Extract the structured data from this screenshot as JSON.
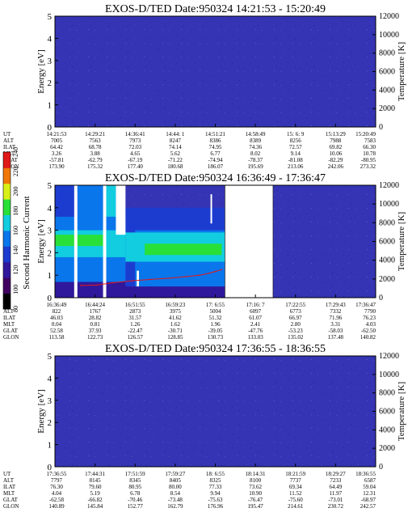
{
  "chart_data": [
    {
      "type": "heatmap",
      "title": "EXOS-D/TED   Date:950324   14:21:53 - 15:20:49",
      "ylabel": "Energy [eV]",
      "ylim": [
        0,
        5
      ],
      "yticks": [
        "0",
        "1",
        "2",
        "3",
        "4",
        "5"
      ],
      "y2label": "Temperature [K]",
      "y2lim": [
        0,
        12000
      ],
      "y2ticks": [
        "0",
        "2000",
        "4000",
        "6000",
        "8000",
        "10000",
        "12000"
      ],
      "ephemeris": {
        "labels": [
          "UT",
          "ALT",
          "ILAT",
          "MLT",
          "GLAT",
          "GLON"
        ],
        "columns": [
          [
            "14:21:53",
            "7005",
            "64.42",
            "3.26",
            "-57.81",
            "173.90"
          ],
          [
            "14:29:21",
            "7563",
            "68.78",
            "3.88",
            "-62.79",
            "175.32"
          ],
          [
            "14:36:41",
            "7973",
            "72.03",
            "4.65",
            "-67.19",
            "177.40"
          ],
          [
            "14:44: 1",
            "8247",
            "74.14",
            "5.62",
            "-71.22",
            "180.68"
          ],
          [
            "14:51:21",
            "8386",
            "74.95",
            "6.77",
            "-74.94",
            "186.07"
          ],
          [
            "14:58:49",
            "8389",
            "74.36",
            "8.02",
            "-78.37",
            "195.69"
          ],
          [
            "15: 6: 9",
            "8256",
            "72.57",
            "9.14",
            "-81.08",
            "213.06"
          ],
          [
            "15:13:29",
            "7988",
            "69.82",
            "10.06",
            "-82.29",
            "242.06"
          ],
          [
            "15:20:49",
            "7583",
            "66.30",
            "10.78",
            "-80.95",
            "273.32"
          ]
        ]
      },
      "background_color": "#3434b4"
    },
    {
      "type": "heatmap",
      "title": "EXOS-D/TED   Date:950324   16:36:49 - 17:36:47",
      "ylabel": "Energy [eV]",
      "ylim": [
        0,
        5
      ],
      "yticks": [
        "0",
        "1",
        "2",
        "3",
        "4",
        "5"
      ],
      "y2label": "Temperature [K]",
      "y2lim": [
        0,
        12000
      ],
      "y2ticks": [
        "0",
        "2000",
        "4000",
        "6000",
        "8000",
        "10000",
        "12000"
      ],
      "colorbar": {
        "label": "Second Harmonic Current",
        "ticks": [
          "80",
          "100",
          "120",
          "140",
          "160",
          "180",
          "200",
          "220",
          "240"
        ],
        "colors": [
          "#000000",
          "#400060",
          "#30189c",
          "#1c3cd0",
          "#0a76ec",
          "#12cce0",
          "#28e038",
          "#d8f018",
          "#f07808",
          "#e01818"
        ]
      },
      "ephemeris": {
        "labels": [
          "UT",
          "ALT",
          "ILAT",
          "MLT",
          "GLAT",
          "GLON"
        ],
        "columns": [
          [
            "16:36:49",
            "822",
            "46.03",
            "0.04",
            "52.58",
            "113.58"
          ],
          [
            "16:44:24",
            "1767",
            "28.82",
            "0.81",
            "37.93",
            "122.73"
          ],
          [
            "16:51:55",
            "2873",
            "31.57",
            "1.26",
            "-22.47",
            "126.57"
          ],
          [
            "16:59:23",
            "3975",
            "41.62",
            "1.62",
            "-30.71",
            "128.85"
          ],
          [
            "17: 6:55",
            "5004",
            "51.32",
            "1.96",
            "-39.05",
            "130.73"
          ],
          [
            "17:16: 7",
            "6097",
            "61.07",
            "2.41",
            "-47.76",
            "133.03"
          ],
          [
            "17:22:55",
            "6773",
            "66.97",
            "2.80",
            "-53.23",
            "135.02"
          ],
          [
            "17:29:43",
            "7332",
            "71.96",
            "3.31",
            "-58.03",
            "137.48"
          ],
          [
            "17:36:47",
            "7790",
            "76.23",
            "4.03",
            "-62.50",
            "140.82"
          ]
        ]
      },
      "temperature_trace": {
        "x": [
          0.08,
          0.13,
          0.18,
          0.24,
          0.3,
          0.36,
          0.41,
          0.45,
          0.48,
          0.5,
          0.52
        ],
        "values": [
          1300,
          1350,
          1600,
          1800,
          1950,
          2100,
          2250,
          2400,
          2600,
          2800,
          3000
        ]
      },
      "gap": [
        0.53,
        0.68
      ]
    },
    {
      "type": "heatmap",
      "title": "EXOS-D/TED   Date:950324   17:36:55 - 18:36:55",
      "ylabel": "Energy [eV]",
      "ylim": [
        0,
        5
      ],
      "yticks": [
        "0",
        "1",
        "2",
        "3",
        "4",
        "5"
      ],
      "y2label": "Temperature [K]",
      "y2lim": [
        0,
        12000
      ],
      "y2ticks": [
        "0",
        "2000",
        "4000",
        "6000",
        "8000",
        "10000",
        "12000"
      ],
      "ephemeris": {
        "labels": [
          "UT",
          "ALT",
          "ILAT",
          "MLT",
          "GLAT",
          "GLON"
        ],
        "columns": [
          [
            "17:36:55",
            "7797",
            "76.30",
            "4.04",
            "-62.58",
            "140.89"
          ],
          [
            "17:44:31",
            "8145",
            "79.60",
            "5.19",
            "-66.82",
            "145.84"
          ],
          [
            "17:51:59",
            "8345",
            "80.95",
            "6.78",
            "-70.46",
            "152.77"
          ],
          [
            "17:59:27",
            "8405",
            "80.00",
            "8.54",
            "-73.48",
            "162.79"
          ],
          [
            "18: 6:55",
            "8325",
            "77.33",
            "9.94",
            "-75.63",
            "176.96"
          ],
          [
            "18:14:31",
            "8100",
            "73.62",
            "10.90",
            "-76.47",
            "195.47"
          ],
          [
            "18:21:59",
            "7737",
            "69.34",
            "11.52",
            "-75.60",
            "214.61"
          ],
          [
            "18:29:27",
            "7233",
            "64.49",
            "11.97",
            "-73.01",
            "230.72"
          ],
          [
            "18:36:55",
            "6587",
            "59.04",
            "12.31",
            "-68.97",
            "242.57"
          ]
        ]
      },
      "background_color": "#3434b4"
    }
  ]
}
